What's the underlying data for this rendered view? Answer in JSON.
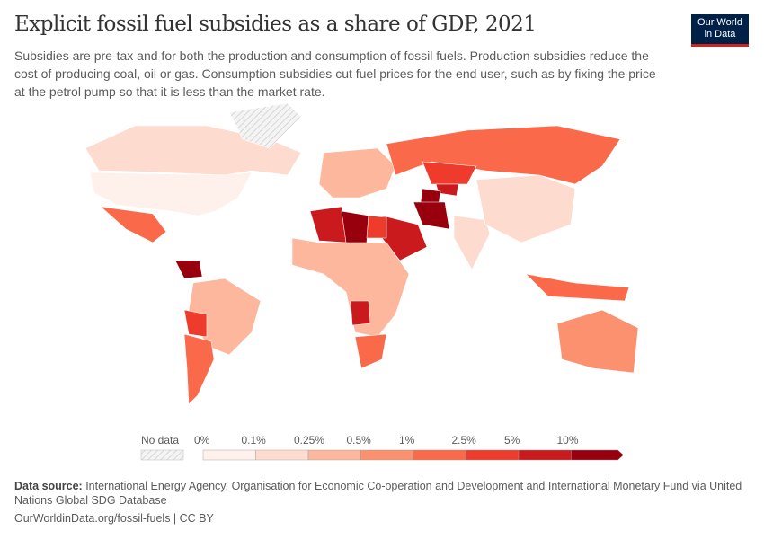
{
  "header": {
    "title": "Explicit fossil fuel subsidies as a share of GDP, 2021",
    "subtitle": "Subsidies are pre-tax and for both the production and consumption of fossil fuels. Production subsidies reduce the cost of producing coal, oil or gas. Consumption subsidies cut fuel prices for the end user, such as by fixing the price at the petrol pump so that it is less than the market rate.",
    "logo": "Our World in Data"
  },
  "chart_data": {
    "type": "choropleth",
    "legend": {
      "no_data_label": "No data",
      "bins": [
        "0%",
        "0.1%",
        "0.25%",
        "0.5%",
        "1%",
        "2.5%",
        "5%",
        "10%"
      ],
      "colors": [
        "#fef0eb",
        "#fddccf",
        "#fcb79d",
        "#fc916f",
        "#fa6a4a",
        "#ef3b2c",
        "#cb1a1e",
        "#99000d"
      ],
      "no_data_color": "#e0e0e0"
    },
    "countries": [
      {
        "name": "United States",
        "bin": "0-0.1%",
        "color": "#fef0eb"
      },
      {
        "name": "Canada",
        "bin": "0.1-0.25%",
        "color": "#fddccf"
      },
      {
        "name": "Mexico",
        "bin": "1-2.5%",
        "color": "#fa6a4a"
      },
      {
        "name": "Venezuela",
        "bin": ">10%",
        "color": "#99000d"
      },
      {
        "name": "Brazil",
        "bin": "0.25-0.5%",
        "color": "#fcb79d"
      },
      {
        "name": "Argentina",
        "bin": "1-2.5%",
        "color": "#fa6a4a"
      },
      {
        "name": "Bolivia",
        "bin": "2.5-5%",
        "color": "#ef3b2c"
      },
      {
        "name": "Greenland",
        "bin": "No data",
        "color": "#e0e0e0"
      },
      {
        "name": "Russia",
        "bin": "1-2.5%",
        "color": "#fa6a4a"
      },
      {
        "name": "Kazakhstan",
        "bin": "2.5-5%",
        "color": "#ef3b2c"
      },
      {
        "name": "Turkmenistan",
        "bin": ">10%",
        "color": "#99000d"
      },
      {
        "name": "Uzbekistan",
        "bin": "5-10%",
        "color": "#cb1a1e"
      },
      {
        "name": "Iran",
        "bin": ">10%",
        "color": "#99000d"
      },
      {
        "name": "Saudi Arabia",
        "bin": "5-10%",
        "color": "#cb1a1e"
      },
      {
        "name": "Algeria",
        "bin": "5-10%",
        "color": "#cb1a1e"
      },
      {
        "name": "Libya",
        "bin": ">10%",
        "color": "#99000d"
      },
      {
        "name": "Egypt",
        "bin": "2.5-5%",
        "color": "#ef3b2c"
      },
      {
        "name": "Angola",
        "bin": "5-10%",
        "color": "#cb1a1e"
      },
      {
        "name": "South Africa",
        "bin": "1-2.5%",
        "color": "#fa6a4a"
      },
      {
        "name": "China",
        "bin": "0.1-0.25%",
        "color": "#fddccf"
      },
      {
        "name": "India",
        "bin": "0.1-0.25%",
        "color": "#fddccf"
      },
      {
        "name": "Indonesia",
        "bin": "1-2.5%",
        "color": "#fa6a4a"
      },
      {
        "name": "Australia",
        "bin": "0.5-1%",
        "color": "#fc916f"
      },
      {
        "name": "Europe",
        "bin": "0.25-0.5%",
        "color": "#fcb79d"
      }
    ]
  },
  "footer": {
    "source_label": "Data source:",
    "source": " International Energy Agency, Organisation for Economic Co-operation and Development and International Monetary Fund via United Nations Global SDG Database",
    "url": "OurWorldinData.org/fossil-fuels | CC BY"
  }
}
